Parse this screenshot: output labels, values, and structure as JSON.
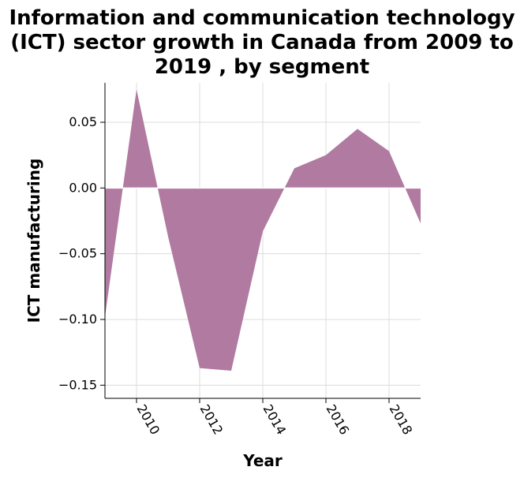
{
  "chart_data": {
    "type": "area",
    "title_lines": [
      "Information and communication technology",
      "(ICT) sector growth in Canada from 2009 to",
      "2019 , by segment"
    ],
    "xlabel": "Year",
    "ylabel": "ICT manufacturing",
    "xlim": [
      2009,
      2019
    ],
    "ylim": [
      -0.16,
      0.08
    ],
    "x_ticks": [
      2010,
      2012,
      2014,
      2016,
      2018
    ],
    "x_tick_labels": [
      "2010",
      "2012",
      "2014",
      "2016",
      "2018"
    ],
    "y_ticks": [
      0.05,
      0.0,
      -0.05,
      -0.1,
      -0.15
    ],
    "y_tick_labels": [
      "0.05",
      "0.00",
      "−0.05",
      "−0.10",
      "−0.15"
    ],
    "grid": true,
    "fill_color": "#b07aa1",
    "x": [
      2009,
      2010,
      2011,
      2012,
      2013,
      2014,
      2015,
      2016,
      2017,
      2018,
      2019
    ],
    "y": [
      -0.098,
      0.075,
      -0.037,
      -0.137,
      -0.139,
      -0.033,
      0.015,
      0.025,
      0.045,
      0.028,
      -0.027
    ]
  }
}
